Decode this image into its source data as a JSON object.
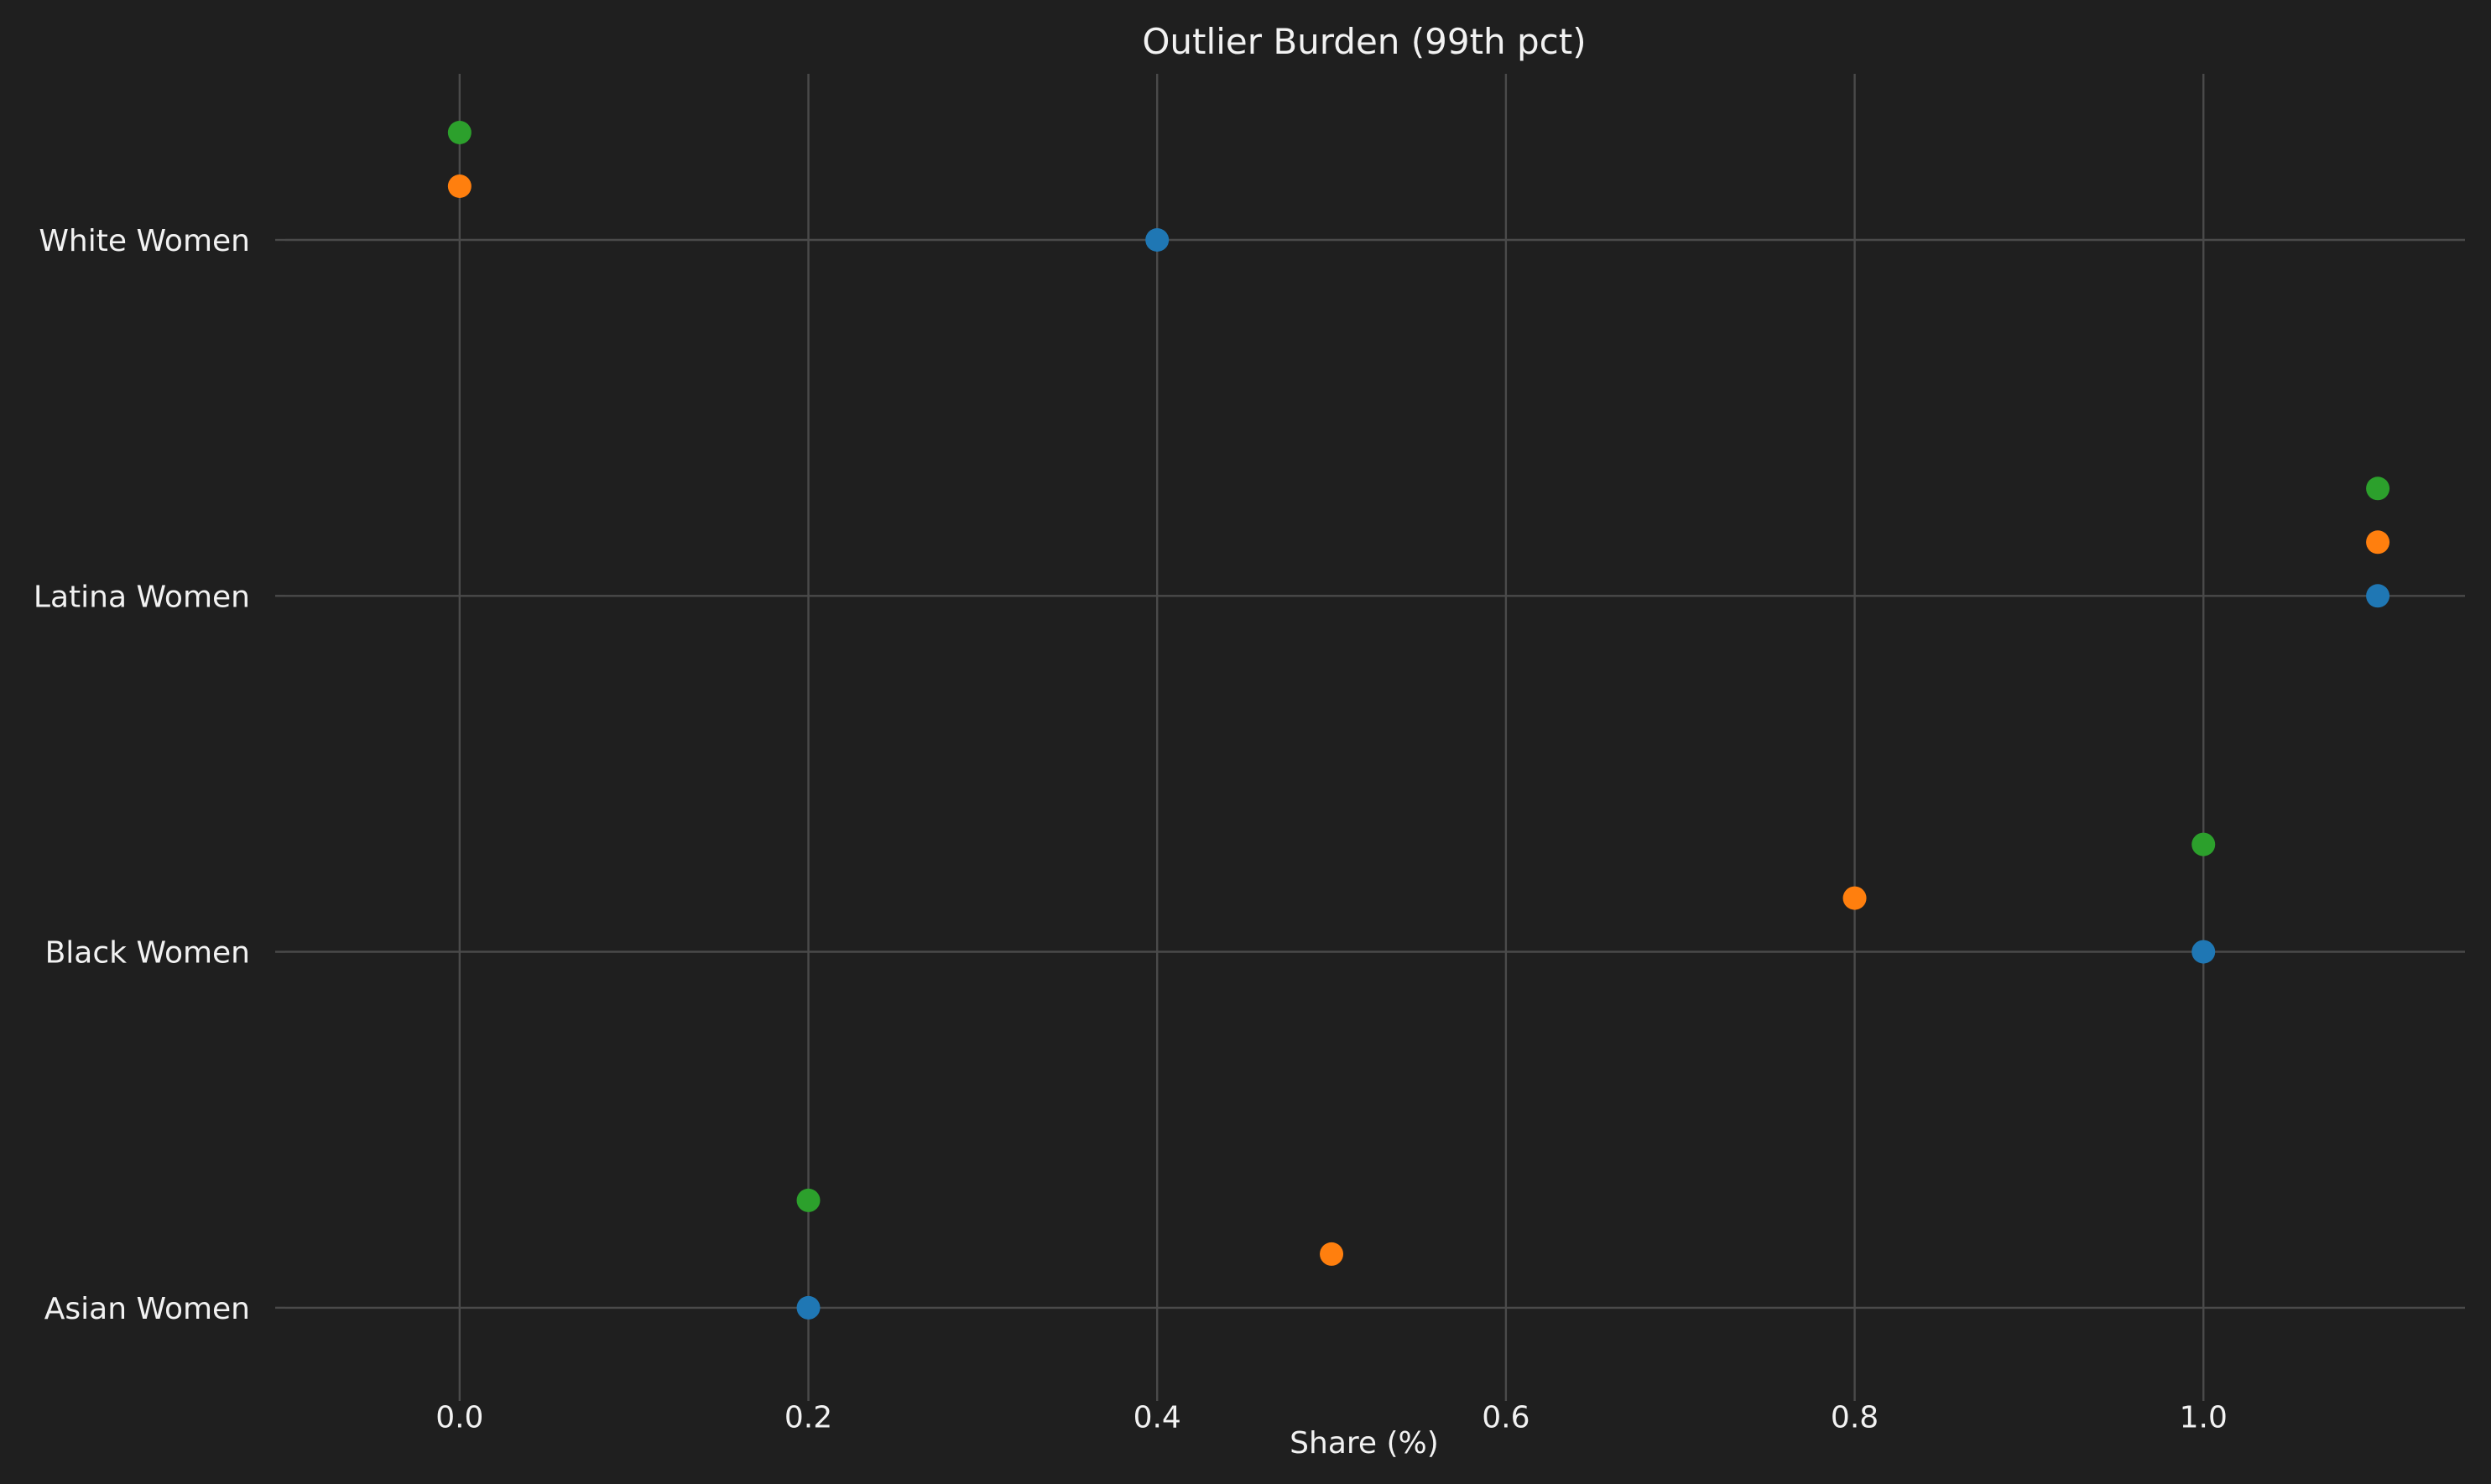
{
  "chart_data": {
    "type": "scatter",
    "title": "Outlier Burden (99th pct)",
    "xlabel": "Share (%)",
    "ylabel": "",
    "xlim": [
      -0.1,
      1.15
    ],
    "x_ticks": [
      "0.0",
      "0.2",
      "0.4",
      "0.6",
      "0.8",
      "1.0"
    ],
    "categories": [
      "White Women",
      "Latina Women",
      "Black Women",
      "Asian Women"
    ],
    "grid": true,
    "series": [
      {
        "color": "#1f77b4",
        "values": [
          0.4,
          1.1,
          1.0,
          0.2
        ]
      },
      {
        "color": "#ff7f0e",
        "values": [
          0.0,
          1.1,
          0.8,
          0.5
        ]
      },
      {
        "color": "#2ca02c",
        "values": [
          0.0,
          1.1,
          1.0,
          0.2
        ]
      }
    ]
  },
  "colors": {
    "background": "#1f1f1f",
    "grid": "#4a4a4a",
    "text": "#f2f2f2"
  }
}
